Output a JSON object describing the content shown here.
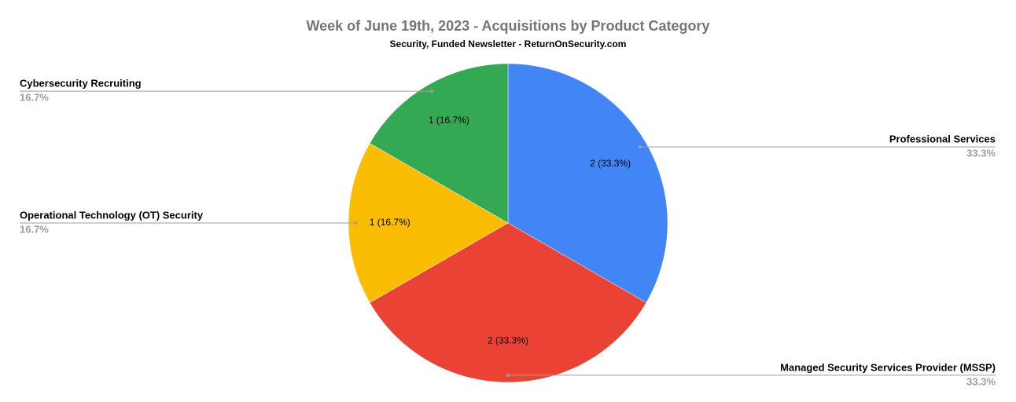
{
  "chart_data": {
    "type": "pie",
    "title": "Week of June 19th, 2023 - Acquisitions by Product Category",
    "subtitle": "Security, Funded Newsletter - ReturnOnSecurity.com",
    "categories": [
      "Professional Services",
      "Managed Security Services Provider (MSSP)",
      "Operational Technology (OT) Security",
      "Cybersecurity Recruiting"
    ],
    "values": [
      2,
      2,
      1,
      1
    ],
    "value_labels": [
      "2 (33.3%)",
      "2 (33.3%)",
      "1 (16.7%)",
      "1 (16.7%)"
    ],
    "percent_labels": [
      "33.3%",
      "33.3%",
      "16.7%",
      "16.7%"
    ],
    "colors": [
      "#4285f4",
      "#ea4335",
      "#fbbc04",
      "#34a853"
    ]
  }
}
